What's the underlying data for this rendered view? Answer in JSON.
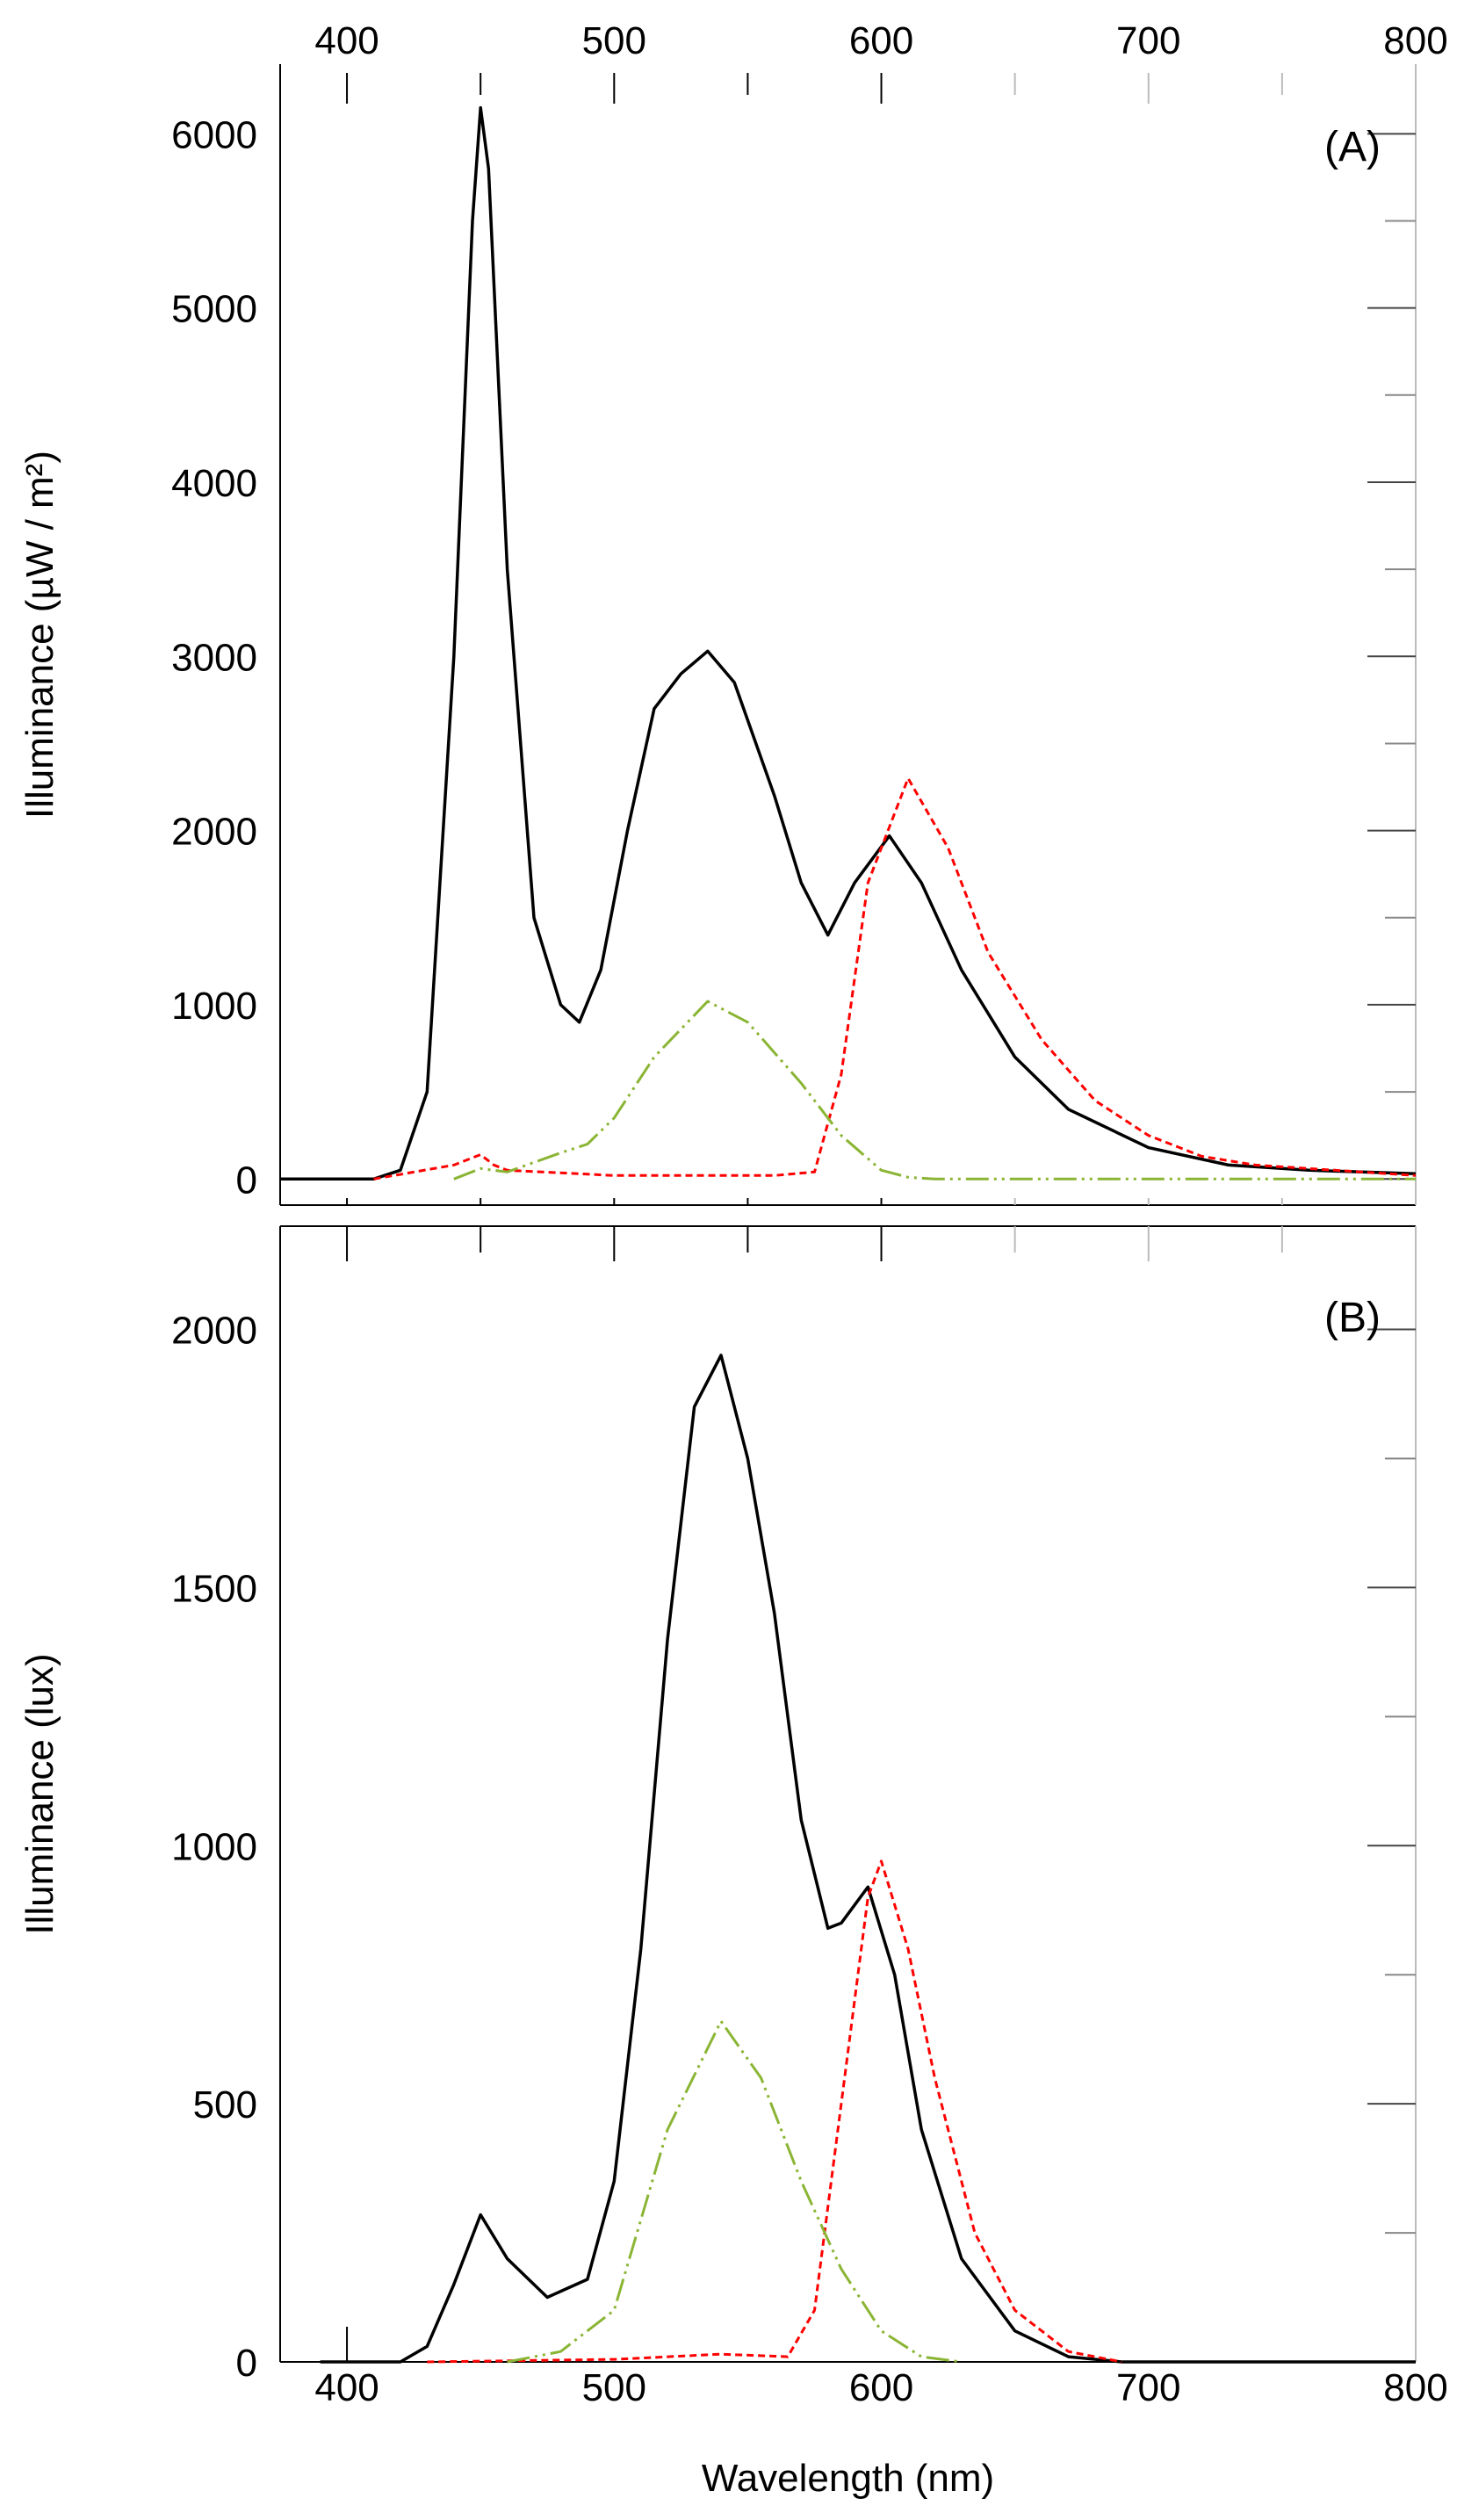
{
  "chart_data": [
    {
      "type": "line",
      "panel_label": "(A)",
      "xlabel": "",
      "ylabel": "Illuminance (µW / m²)",
      "xlim": [
        375,
        800
      ],
      "ylim": [
        -150,
        6400
      ],
      "xticks": [
        400,
        500,
        600,
        700,
        800
      ],
      "xtick_position": "top",
      "yticks": [
        0,
        1000,
        2000,
        3000,
        4000,
        5000,
        6000
      ],
      "grid": false,
      "series": [
        {
          "color": "#000000",
          "style": "solid",
          "x": [
            375,
            410,
            420,
            430,
            440,
            447,
            450,
            453,
            460,
            470,
            480,
            487,
            495,
            505,
            515,
            525,
            535,
            545,
            560,
            570,
            580,
            590,
            603,
            615,
            630,
            650,
            670,
            700,
            730,
            760,
            800
          ],
          "y": [
            0,
            0,
            50,
            500,
            3000,
            5500,
            6150,
            5800,
            3500,
            1500,
            1000,
            900,
            1200,
            2000,
            2700,
            2900,
            3030,
            2850,
            2200,
            1700,
            1400,
            1700,
            1970,
            1700,
            1200,
            700,
            400,
            180,
            80,
            50,
            30
          ]
        },
        {
          "color": "#ff0000",
          "style": "dashed",
          "x": [
            410,
            440,
            450,
            455,
            460,
            500,
            560,
            575,
            585,
            595,
            610,
            625,
            640,
            660,
            680,
            700,
            720,
            740,
            800
          ],
          "y": [
            0,
            80,
            140,
            80,
            50,
            20,
            20,
            40,
            600,
            1700,
            2300,
            1900,
            1300,
            800,
            450,
            250,
            130,
            80,
            20
          ]
        },
        {
          "color": "#8ab534",
          "style": "dash-dot",
          "x": [
            440,
            450,
            460,
            480,
            490,
            500,
            515,
            535,
            550,
            570,
            585,
            600,
            610,
            620,
            800
          ],
          "y": [
            0,
            60,
            40,
            150,
            200,
            350,
            700,
            1020,
            900,
            550,
            250,
            50,
            10,
            0,
            0
          ]
        }
      ]
    },
    {
      "type": "line",
      "panel_label": "(B)",
      "xlabel": "Wavelength (nm)",
      "ylabel": "Illuminance (lux)",
      "xlim": [
        375,
        800
      ],
      "ylim": [
        0,
        2200
      ],
      "xticks": [
        400,
        500,
        600,
        700,
        800
      ],
      "xtick_position": "bottom",
      "yticks": [
        0,
        500,
        1000,
        1500,
        2000
      ],
      "grid": false,
      "series": [
        {
          "color": "#000000",
          "style": "solid",
          "x": [
            390,
            420,
            430,
            440,
            450,
            460,
            475,
            490,
            500,
            510,
            520,
            530,
            540,
            550,
            560,
            570,
            580,
            585,
            595,
            605,
            615,
            630,
            650,
            670,
            690,
            800
          ],
          "y": [
            0,
            0,
            30,
            150,
            285,
            200,
            125,
            160,
            350,
            800,
            1400,
            1850,
            1950,
            1750,
            1450,
            1050,
            840,
            850,
            920,
            750,
            450,
            200,
            60,
            10,
            0,
            0
          ]
        },
        {
          "color": "#ff0000",
          "style": "dashed",
          "x": [
            430,
            500,
            540,
            565,
            575,
            585,
            595,
            600,
            610,
            620,
            635,
            650,
            670,
            690
          ],
          "y": [
            0,
            5,
            15,
            10,
            100,
            500,
            900,
            970,
            800,
            550,
            250,
            100,
            20,
            0
          ]
        },
        {
          "color": "#8ab534",
          "style": "dash-dot",
          "x": [
            460,
            480,
            500,
            520,
            540,
            555,
            570,
            585,
            600,
            615,
            630
          ],
          "y": [
            0,
            20,
            100,
            450,
            660,
            550,
            350,
            180,
            60,
            10,
            0
          ]
        }
      ]
    }
  ]
}
